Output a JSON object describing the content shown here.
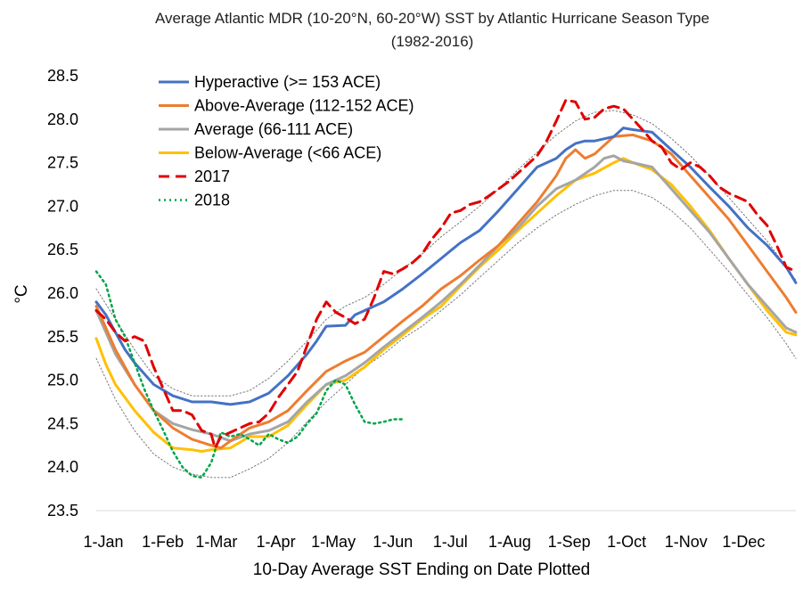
{
  "chart_data": {
    "type": "line",
    "title": "Average Atlantic MDR (10-20°N, 60-20°W) SST by Atlantic Hurricane Season Type",
    "subtitle": "(1982-2016)",
    "xlabel": "10-Day Average SST Ending on Date Plotted",
    "ylabel": "°C",
    "ylim": [
      23.5,
      28.5
    ],
    "yticks": [
      "23.5",
      "24.0",
      "24.5",
      "25.0",
      "25.5",
      "26.0",
      "26.5",
      "27.0",
      "27.5",
      "28.0",
      "28.5"
    ],
    "x_tick_labels": [
      {
        "day": 0,
        "label": "1-Jan"
      },
      {
        "day": 31,
        "label": "1-Feb"
      },
      {
        "day": 59,
        "label": "1-Mar"
      },
      {
        "day": 90,
        "label": "1-Apr"
      },
      {
        "day": 120,
        "label": "1-May"
      },
      {
        "day": 151,
        "label": "1-Jun"
      },
      {
        "day": 181,
        "label": "1-Jul"
      },
      {
        "day": 212,
        "label": "1-Aug"
      },
      {
        "day": 243,
        "label": "1-Sep"
      },
      {
        "day": 273,
        "label": "1-Oct"
      },
      {
        "day": 304,
        "label": "1-Nov"
      },
      {
        "day": 334,
        "label": "1-Dec"
      }
    ],
    "x_range_days": [
      0,
      365
    ],
    "legend_position": "top-left",
    "series": [
      {
        "name": "Hyperactive (>= 153 ACE)",
        "color": "#4472C4",
        "dash": "solid",
        "legend": true,
        "x": [
          0,
          5,
          10,
          15,
          20,
          30,
          40,
          50,
          60,
          70,
          80,
          90,
          100,
          110,
          115,
          120,
          130,
          135,
          140,
          150,
          160,
          170,
          180,
          190,
          200,
          210,
          220,
          230,
          240,
          245,
          250,
          255,
          260,
          270,
          275,
          280,
          290,
          300,
          310,
          320,
          330,
          340,
          350,
          360,
          365
        ],
        "y": [
          25.9,
          25.75,
          25.55,
          25.35,
          25.2,
          24.95,
          24.82,
          24.75,
          24.75,
          24.72,
          24.75,
          24.85,
          25.05,
          25.3,
          25.45,
          25.62,
          25.63,
          25.75,
          25.8,
          25.9,
          26.05,
          26.22,
          26.4,
          26.58,
          26.72,
          26.95,
          27.2,
          27.45,
          27.55,
          27.65,
          27.72,
          27.75,
          27.75,
          27.8,
          27.9,
          27.88,
          27.85,
          27.65,
          27.45,
          27.22,
          27.0,
          26.75,
          26.55,
          26.3,
          26.12
        ]
      },
      {
        "name": "Above-Average (112-152 ACE)",
        "color": "#ED7D31",
        "dash": "solid",
        "legend": true,
        "x": [
          0,
          5,
          10,
          20,
          30,
          40,
          50,
          60,
          65,
          70,
          80,
          90,
          100,
          110,
          120,
          130,
          140,
          150,
          160,
          170,
          180,
          190,
          200,
          210,
          220,
          230,
          240,
          245,
          250,
          255,
          260,
          270,
          280,
          290,
          300,
          310,
          320,
          330,
          340,
          350,
          360,
          365
        ],
        "y": [
          25.85,
          25.6,
          25.35,
          24.95,
          24.65,
          24.45,
          24.32,
          24.25,
          24.22,
          24.3,
          24.45,
          24.52,
          24.65,
          24.88,
          25.1,
          25.22,
          25.32,
          25.5,
          25.68,
          25.85,
          26.05,
          26.2,
          26.38,
          26.55,
          26.8,
          27.05,
          27.35,
          27.55,
          27.65,
          27.55,
          27.6,
          27.8,
          27.82,
          27.75,
          27.6,
          27.35,
          27.1,
          26.85,
          26.55,
          26.25,
          25.95,
          25.78
        ]
      },
      {
        "name": "Average (66-111 ACE)",
        "color": "#A5A5A5",
        "dash": "solid",
        "legend": true,
        "x": [
          0,
          5,
          10,
          20,
          30,
          40,
          50,
          60,
          70,
          80,
          90,
          100,
          110,
          120,
          130,
          140,
          150,
          160,
          170,
          180,
          190,
          200,
          210,
          220,
          230,
          240,
          250,
          260,
          265,
          270,
          275,
          280,
          290,
          300,
          310,
          320,
          330,
          340,
          350,
          360,
          365
        ],
        "y": [
          25.8,
          25.55,
          25.3,
          24.95,
          24.65,
          24.5,
          24.43,
          24.38,
          24.3,
          24.38,
          24.42,
          24.52,
          24.75,
          24.95,
          25.05,
          25.2,
          25.38,
          25.55,
          25.72,
          25.9,
          26.1,
          26.32,
          26.55,
          26.75,
          27.0,
          27.2,
          27.3,
          27.45,
          27.55,
          27.58,
          27.52,
          27.5,
          27.45,
          27.2,
          26.95,
          26.7,
          26.4,
          26.1,
          25.85,
          25.6,
          25.55
        ]
      },
      {
        "name": "Below-Average (<66 ACE)",
        "color": "#FFC000",
        "dash": "solid",
        "legend": true,
        "x": [
          0,
          5,
          10,
          20,
          30,
          40,
          50,
          55,
          60,
          70,
          80,
          90,
          100,
          110,
          120,
          130,
          140,
          150,
          160,
          170,
          180,
          190,
          200,
          210,
          220,
          230,
          240,
          250,
          260,
          270,
          275,
          280,
          290,
          300,
          310,
          320,
          330,
          340,
          350,
          360,
          365
        ],
        "y": [
          25.48,
          25.18,
          24.95,
          24.65,
          24.4,
          24.22,
          24.2,
          24.18,
          24.2,
          24.22,
          24.35,
          24.35,
          24.48,
          24.72,
          24.95,
          25.0,
          25.15,
          25.35,
          25.52,
          25.7,
          25.85,
          26.08,
          26.3,
          26.5,
          26.72,
          26.92,
          27.12,
          27.3,
          27.38,
          27.5,
          27.55,
          27.5,
          27.42,
          27.25,
          27.0,
          26.72,
          26.4,
          26.1,
          25.8,
          25.55,
          25.52
        ]
      },
      {
        "name": "2017",
        "color": "#E00000",
        "dash": "dashed",
        "legend": true,
        "x": [
          0,
          5,
          10,
          15,
          20,
          25,
          30,
          35,
          40,
          45,
          50,
          55,
          60,
          62,
          65,
          70,
          75,
          80,
          85,
          90,
          95,
          100,
          105,
          110,
          115,
          120,
          125,
          130,
          135,
          140,
          145,
          150,
          155,
          160,
          165,
          170,
          175,
          180,
          185,
          190,
          195,
          200,
          205,
          210,
          215,
          220,
          225,
          230,
          235,
          240,
          245,
          250,
          255,
          260,
          265,
          270,
          275,
          280,
          285,
          290,
          295,
          300,
          305,
          310,
          315,
          320,
          325,
          330,
          335,
          340,
          345,
          350,
          355,
          360,
          365
        ],
        "y": [
          25.8,
          25.7,
          25.55,
          25.45,
          25.5,
          25.45,
          25.15,
          24.9,
          24.65,
          24.65,
          24.6,
          24.42,
          24.38,
          24.22,
          24.35,
          24.4,
          24.45,
          24.5,
          24.52,
          24.62,
          24.8,
          24.95,
          25.1,
          25.4,
          25.7,
          25.9,
          25.78,
          25.72,
          25.65,
          25.7,
          25.95,
          26.25,
          26.22,
          26.28,
          26.35,
          26.45,
          26.62,
          26.75,
          26.92,
          26.95,
          27.02,
          27.05,
          27.12,
          27.2,
          27.28,
          27.38,
          27.48,
          27.58,
          27.75,
          27.98,
          28.22,
          28.2,
          28.0,
          28.02,
          28.12,
          28.15,
          28.12,
          28.0,
          27.88,
          27.75,
          27.68,
          27.5,
          27.42,
          27.5,
          27.45,
          27.35,
          27.22,
          27.15,
          27.1,
          27.05,
          26.9,
          26.78,
          26.55,
          26.3,
          26.25
        ]
      },
      {
        "name": "2018",
        "color": "#00A44A",
        "dash": "dotted",
        "legend": true,
        "x": [
          0,
          5,
          10,
          15,
          20,
          25,
          30,
          35,
          40,
          45,
          50,
          55,
          60,
          65,
          70,
          75,
          80,
          85,
          90,
          95,
          100,
          105,
          110,
          115,
          120,
          125,
          130,
          135,
          140,
          145,
          150,
          155,
          160
        ],
        "y": [
          26.25,
          26.1,
          25.7,
          25.5,
          25.2,
          24.9,
          24.65,
          24.42,
          24.18,
          24.0,
          23.9,
          23.88,
          24.05,
          24.4,
          24.35,
          24.38,
          24.32,
          24.25,
          24.38,
          24.32,
          24.28,
          24.35,
          24.5,
          24.62,
          24.88,
          25.0,
          24.95,
          24.72,
          24.52,
          24.5,
          24.52,
          24.55,
          24.55
        ]
      },
      {
        "name": "Upper envelope",
        "color": "#777777",
        "dash": "thin-dotted",
        "legend": false,
        "x": [
          0,
          10,
          20,
          30,
          40,
          50,
          60,
          70,
          80,
          90,
          100,
          110,
          120,
          130,
          140,
          150,
          160,
          170,
          180,
          190,
          200,
          210,
          220,
          230,
          240,
          250,
          260,
          270,
          280,
          290,
          300,
          310,
          320,
          330,
          340,
          350,
          360,
          365
        ],
        "y": [
          26.05,
          25.7,
          25.35,
          25.05,
          24.9,
          24.82,
          24.82,
          24.82,
          24.88,
          25.02,
          25.22,
          25.45,
          25.7,
          25.85,
          25.95,
          26.1,
          26.28,
          26.45,
          26.65,
          26.82,
          27.0,
          27.2,
          27.42,
          27.62,
          27.82,
          27.98,
          28.08,
          28.1,
          28.05,
          27.95,
          27.78,
          27.58,
          27.35,
          27.1,
          26.85,
          26.6,
          26.3,
          26.15
        ]
      },
      {
        "name": "Lower envelope",
        "color": "#777777",
        "dash": "thin-dotted",
        "legend": false,
        "x": [
          0,
          10,
          20,
          30,
          40,
          50,
          60,
          70,
          80,
          90,
          100,
          110,
          120,
          130,
          140,
          150,
          160,
          170,
          180,
          190,
          200,
          210,
          220,
          230,
          240,
          250,
          260,
          270,
          280,
          290,
          300,
          310,
          320,
          330,
          340,
          350,
          360,
          365
        ],
        "y": [
          25.25,
          24.78,
          24.42,
          24.15,
          24.0,
          23.92,
          23.88,
          23.88,
          23.98,
          24.1,
          24.28,
          24.52,
          24.75,
          24.95,
          25.15,
          25.3,
          25.48,
          25.62,
          25.8,
          25.98,
          26.18,
          26.38,
          26.58,
          26.75,
          26.9,
          27.02,
          27.12,
          27.18,
          27.18,
          27.1,
          26.95,
          26.75,
          26.5,
          26.25,
          25.98,
          25.72,
          25.42,
          25.25
        ]
      }
    ]
  }
}
